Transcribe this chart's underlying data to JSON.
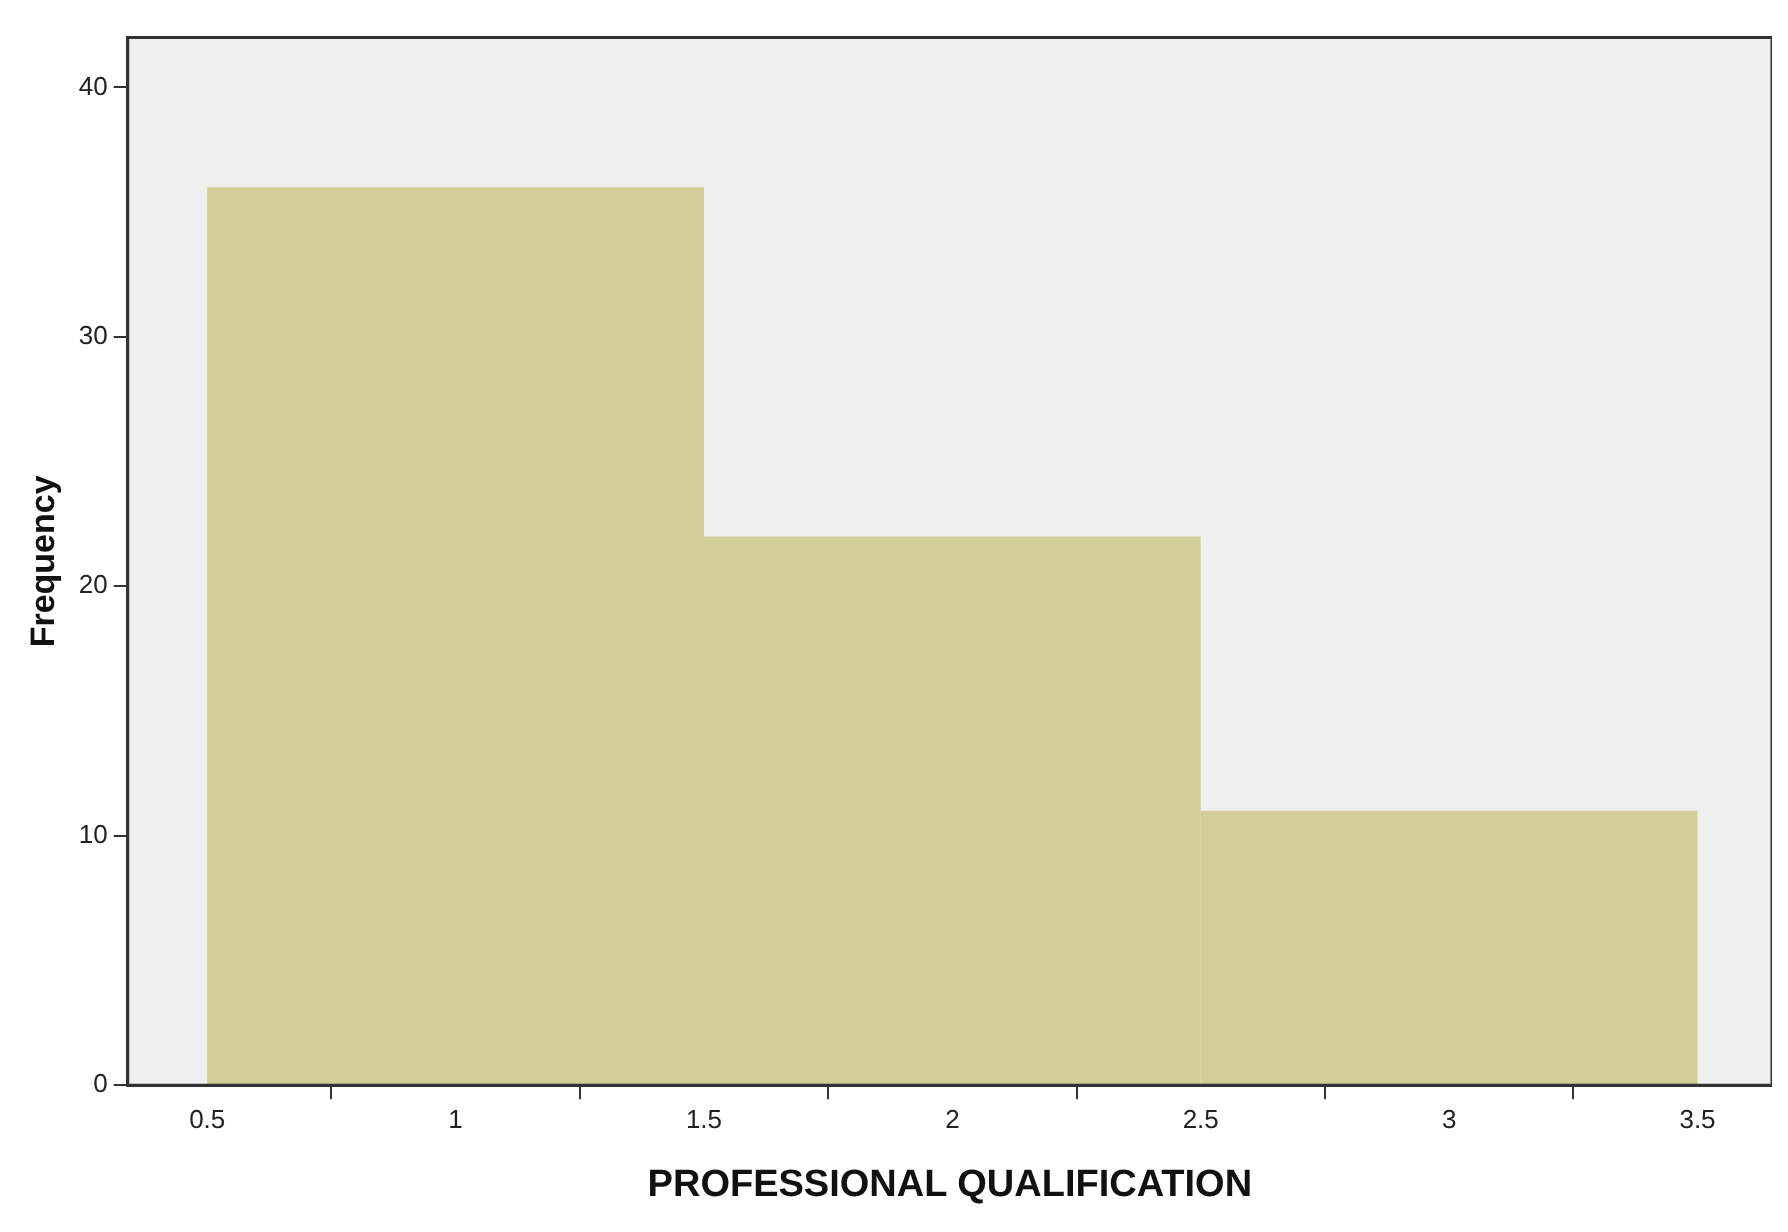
{
  "chart_data": {
    "type": "histogram",
    "xlabel": "PROFESSIONAL QUALIFICATION",
    "ylabel": "Frequency",
    "bins": [
      0.5,
      1.5,
      2.5,
      3.5
    ],
    "values": [
      36,
      22,
      11
    ],
    "color": "#d3cd97",
    "xlim": [
      0.34,
      3.65
    ],
    "xticks": [
      0.5,
      1,
      1.5,
      2,
      2.5,
      3,
      3.5
    ],
    "ylim": [
      0,
      42
    ],
    "yticks": [
      0,
      10,
      20,
      30,
      40
    ]
  }
}
